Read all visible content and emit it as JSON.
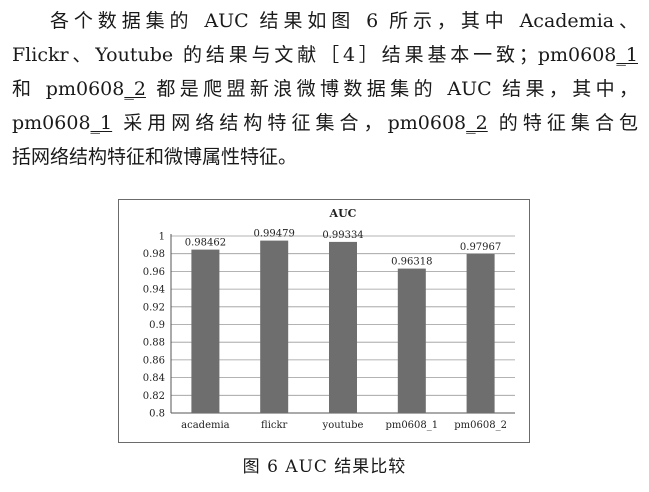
{
  "paragraph": {
    "lines": [
      {
        "segments": [
          {
            "t": "各个数据集的 AUC 结果如图 6 所示，其中 Academia、"
          }
        ]
      },
      {
        "segments": [
          {
            "t": "Flickr、Youtube 的结果与文献［4］结果基本一致；pm0608"
          },
          {
            "t": "_1",
            "u": true
          }
        ]
      },
      {
        "segments": [
          {
            "t": "和 pm0608"
          },
          {
            "t": "_2",
            "u": true
          },
          {
            "t": " 都是爬盟新浪微博数据集的 AUC 结果，其中，"
          }
        ]
      },
      {
        "segments": [
          {
            "t": "pm0608"
          },
          {
            "t": "_1",
            "u": true
          },
          {
            "t": " 采用网络结构特征集合，pm0608"
          },
          {
            "t": "_2",
            "u": true
          },
          {
            "t": " 的特征集合包"
          }
        ]
      },
      {
        "segments": [
          {
            "t": "括网络结构特征和微博属性特征。"
          }
        ]
      }
    ]
  },
  "figure": {
    "caption": "图 6    AUC 结果比较"
  },
  "chart_data": {
    "type": "bar",
    "title": "AUC",
    "categories": [
      "academia",
      "flickr",
      "youtube",
      "pm0608_1",
      "pm0608_2"
    ],
    "values": [
      0.98462,
      0.99479,
      0.99334,
      0.96318,
      0.97967
    ],
    "data_labels": [
      "0.98462",
      "0.99479",
      "0.99334",
      "0.96318",
      "0.97967"
    ],
    "ylim": [
      0.8,
      1.0
    ],
    "yticks": [
      "0.8",
      "0.82",
      "0.84",
      "0.86",
      "0.88",
      "0.9",
      "0.92",
      "0.94",
      "0.96",
      "0.98",
      "1"
    ],
    "grid": true,
    "legend": "none",
    "bar_color": "#6e6e6e",
    "grid_color": "#9a9a9a",
    "xlabel": "",
    "ylabel": ""
  }
}
